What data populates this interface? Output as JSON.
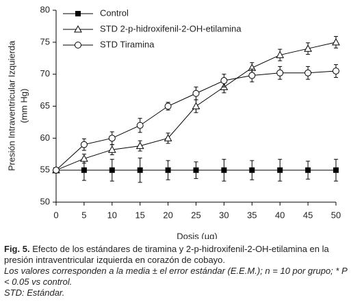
{
  "chart_data": {
    "type": "line",
    "xlabel": "Dosis (µg)",
    "ylabel": [
      "Presión Intraventricular Izquierda",
      "(mm Hg)"
    ],
    "x": [
      0,
      5,
      10,
      15,
      20,
      25,
      30,
      35,
      40,
      45,
      50
    ],
    "xlim": [
      0,
      50
    ],
    "xticks": [
      0,
      5,
      10,
      15,
      20,
      25,
      30,
      35,
      40,
      45,
      50
    ],
    "ylim": [
      50,
      80
    ],
    "yticks": [
      50,
      55,
      60,
      65,
      70,
      75,
      80
    ],
    "legend": "top-left",
    "series": [
      {
        "name": "Control",
        "color": "#000000",
        "marker": "square",
        "values": [
          55,
          55,
          55,
          55,
          55,
          55,
          55,
          55,
          55,
          55,
          55
        ],
        "errors": [
          0.3,
          1.6,
          1.7,
          1.9,
          1.5,
          1.3,
          1.7,
          1.5,
          1.7,
          1.4,
          1.7
        ]
      },
      {
        "name": "STD 2-p-hidroxifenil-2-OH-etilamina",
        "color": "#000000",
        "marker": "triangle",
        "values": [
          55,
          56.8,
          58.2,
          58.8,
          60,
          65,
          68,
          71,
          73,
          74,
          75
        ],
        "errors": [
          0.3,
          0.7,
          0.8,
          0.8,
          0.8,
          1.0,
          0.9,
          0.8,
          0.9,
          0.9,
          0.9
        ]
      },
      {
        "name": "STD Tiramina",
        "color": "#000000",
        "marker": "circle",
        "values": [
          55,
          59,
          60,
          62,
          65,
          67,
          69,
          69.8,
          70.2,
          70.2,
          70.5
        ],
        "errors": [
          0.3,
          0.9,
          1.0,
          1.1,
          0.6,
          1.0,
          1.0,
          1.0,
          1.0,
          1.0,
          1.0
        ]
      }
    ]
  },
  "caption": {
    "label": "Fig. 5.",
    "text": "Efecto de los estándares de tiramina y 2-p-hidroxifenil-2-OH-etilamina en la presión intraventricular izquierda en corazón de cobayo.",
    "note": "Los valores corresponden a la media ± el error estándar (E.E.M.); n = 10 por grupo; * P < 0.05 vs control.",
    "std": "STD: Estándar."
  }
}
